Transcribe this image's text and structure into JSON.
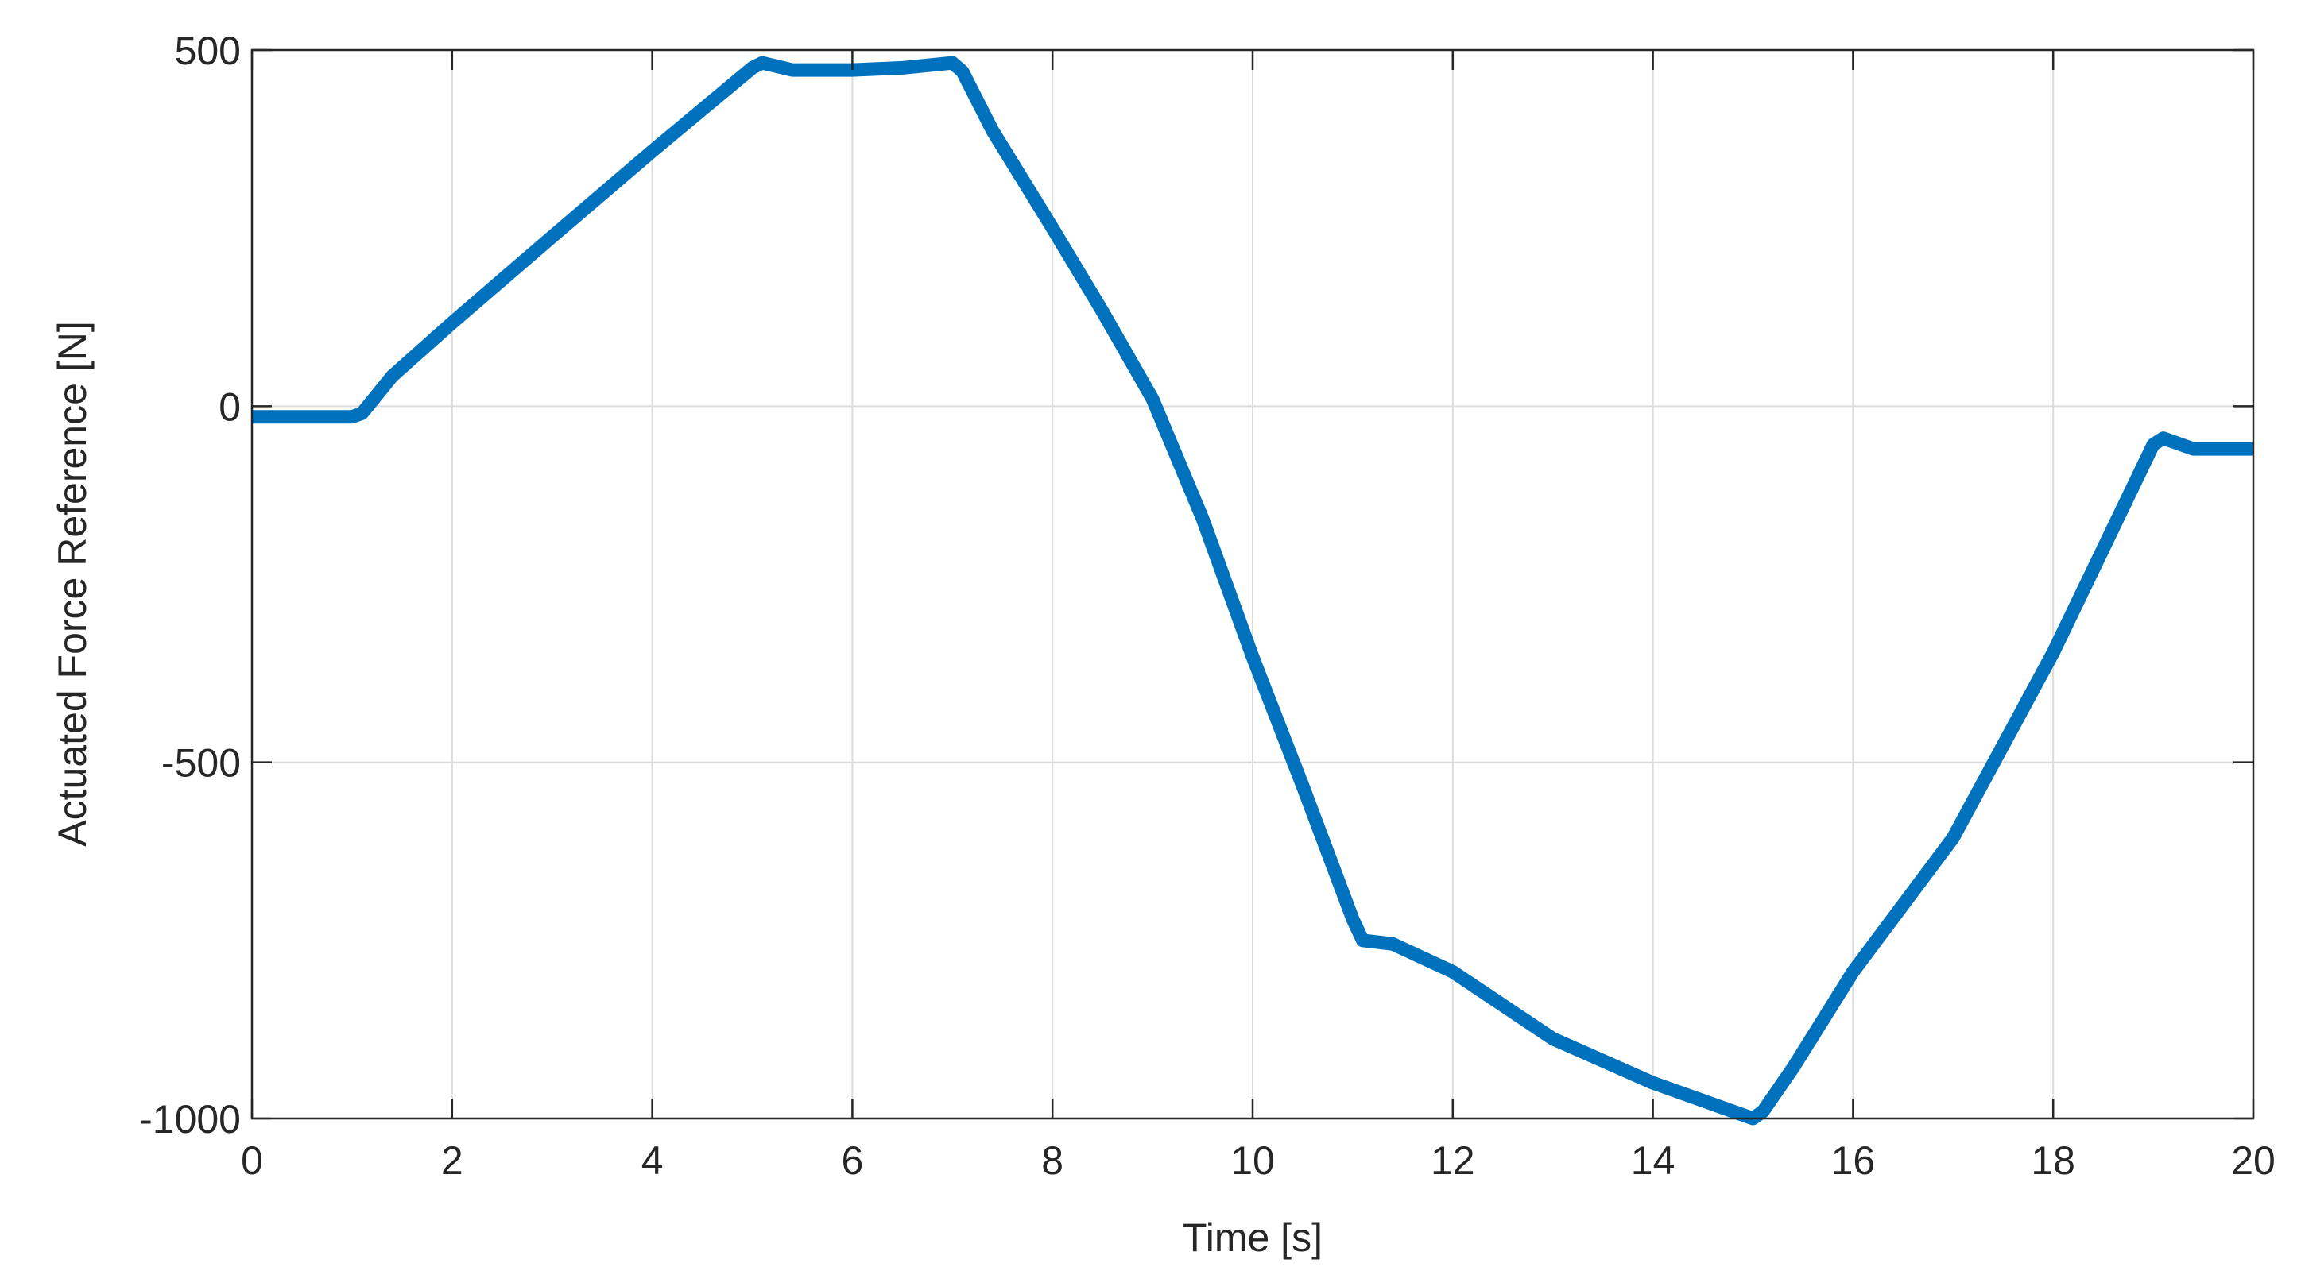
{
  "chart_data": {
    "type": "line",
    "x_label": "Time [s]",
    "y_label": "Actuated Force Reference [N]",
    "xlim": [
      0,
      20
    ],
    "xticks": [
      0,
      2,
      4,
      6,
      8,
      10,
      12,
      14,
      16,
      18,
      20
    ],
    "ylim": [
      -1000,
      500
    ],
    "yticks": [
      -1000,
      -500,
      0,
      500
    ],
    "grid": true,
    "series": [
      {
        "color": "#0072bd",
        "x": [
          0,
          1,
          1.1,
          1.4,
          2,
          3,
          4,
          5,
          5.1,
          5.4,
          6,
          6.5,
          7,
          7.1,
          7.4,
          8,
          8.5,
          9,
          9.5,
          10,
          10.5,
          11,
          11.1,
          11.4,
          12,
          13,
          14,
          15,
          15.1,
          15.4,
          16,
          17,
          18,
          19,
          19.1,
          19.4,
          20
        ],
        "values": [
          -15,
          -15,
          -10,
          42,
          117,
          238,
          358,
          475,
          482,
          472,
          472,
          475,
          482,
          470,
          387,
          250,
          133,
          10,
          -158,
          -352,
          -533,
          -720,
          -750,
          -755,
          -794,
          -888,
          -950,
          -1000,
          -990,
          -929,
          -794,
          -606,
          -346,
          -54,
          -45,
          -60,
          -60
        ]
      }
    ]
  }
}
